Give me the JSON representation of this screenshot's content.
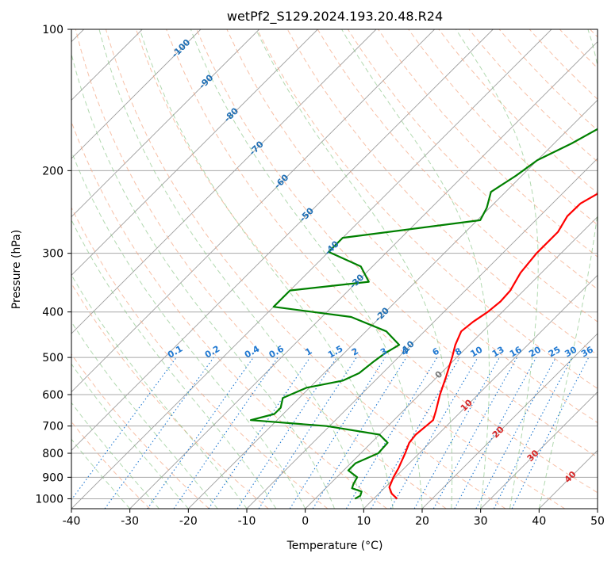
{
  "chart_data": {
    "type": "line",
    "title": "wetPf2_S129.2024.193.20.48.R24",
    "xlabel": "Temperature (°C)",
    "ylabel": "Pressure (hPa)",
    "xlim": [
      -40,
      50
    ],
    "ylim": [
      1050,
      100
    ],
    "y_scale": "log",
    "grid": true,
    "x_ticks": [
      "-40",
      "-30",
      "-20",
      "-10",
      "0",
      "10",
      "20",
      "30",
      "40",
      "50"
    ],
    "y_ticks": [
      "100",
      "200",
      "300",
      "400",
      "500",
      "600",
      "700",
      "800",
      "900",
      "1000"
    ],
    "series": [
      {
        "role": "temperature",
        "color": "#ff0000",
        "points": [
          {
            "p": 1000,
            "t": 14.0
          },
          {
            "p": 975,
            "t": 12.2
          },
          {
            "p": 945,
            "t": 10.7
          },
          {
            "p": 900,
            "t": 9.7
          },
          {
            "p": 860,
            "t": 9.0
          },
          {
            "p": 800,
            "t": 7.6
          },
          {
            "p": 760,
            "t": 6.5
          },
          {
            "p": 730,
            "t": 6.2
          },
          {
            "p": 700,
            "t": 6.5
          },
          {
            "p": 680,
            "t": 6.7
          },
          {
            "p": 650,
            "t": 5.6
          },
          {
            "p": 600,
            "t": 3.5
          },
          {
            "p": 550,
            "t": 1.5
          },
          {
            "p": 500,
            "t": -0.8
          },
          {
            "p": 470,
            "t": -2.4
          },
          {
            "p": 440,
            "t": -3.7
          },
          {
            "p": 420,
            "t": -3.3
          },
          {
            "p": 400,
            "t": -2.5
          },
          {
            "p": 380,
            "t": -2.1
          },
          {
            "p": 360,
            "t": -2.3
          },
          {
            "p": 330,
            "t": -3.6
          },
          {
            "p": 300,
            "t": -4.2
          },
          {
            "p": 270,
            "t": -4.2
          },
          {
            "p": 250,
            "t": -5.3
          },
          {
            "p": 235,
            "t": -5.2
          },
          {
            "p": 220,
            "t": -3.5
          },
          {
            "p": 200,
            "t": -0.5
          },
          {
            "p": 180,
            "t": 2.7
          },
          {
            "p": 160,
            "t": 5.8
          },
          {
            "p": 145,
            "t": 8.8
          },
          {
            "p": 135,
            "t": 12.5
          },
          {
            "p": 128,
            "t": 15.2
          },
          {
            "p": 120,
            "t": 17.0
          },
          {
            "p": 110,
            "t": 18.4
          },
          {
            "p": 100,
            "t": 20.0
          }
        ]
      },
      {
        "role": "dewpoint",
        "color": "#008000",
        "points": [
          {
            "p": 1000,
            "t": 6.8
          },
          {
            "p": 985,
            "t": 7.2
          },
          {
            "p": 965,
            "t": 6.7
          },
          {
            "p": 950,
            "t": 4.5
          },
          {
            "p": 930,
            "t": 4.0
          },
          {
            "p": 900,
            "t": 3.5
          },
          {
            "p": 870,
            "t": 0.8
          },
          {
            "p": 840,
            "t": 0.8
          },
          {
            "p": 800,
            "t": 3.0
          },
          {
            "p": 760,
            "t": 2.8
          },
          {
            "p": 730,
            "t": 0.0
          },
          {
            "p": 700,
            "t": -10.5
          },
          {
            "p": 680,
            "t": -24.5
          },
          {
            "p": 660,
            "t": -21.5
          },
          {
            "p": 640,
            "t": -21.5
          },
          {
            "p": 610,
            "t": -22.8
          },
          {
            "p": 580,
            "t": -20.5
          },
          {
            "p": 560,
            "t": -15.5
          },
          {
            "p": 540,
            "t": -14.0
          },
          {
            "p": 510,
            "t": -13.5
          },
          {
            "p": 490,
            "t": -13.0
          },
          {
            "p": 470,
            "t": -12.0
          },
          {
            "p": 440,
            "t": -16.5
          },
          {
            "p": 410,
            "t": -25.0
          },
          {
            "p": 390,
            "t": -40.0
          },
          {
            "p": 360,
            "t": -40.0
          },
          {
            "p": 345,
            "t": -28.0
          },
          {
            "p": 320,
            "t": -32.0
          },
          {
            "p": 298,
            "t": -40.0
          },
          {
            "p": 278,
            "t": -40.0
          },
          {
            "p": 255,
            "t": -19.5
          },
          {
            "p": 240,
            "t": -20.5
          },
          {
            "p": 222,
            "t": -22.5
          },
          {
            "p": 205,
            "t": -21.0
          },
          {
            "p": 190,
            "t": -20.0
          },
          {
            "p": 175,
            "t": -17.0
          },
          {
            "p": 160,
            "t": -14.5
          },
          {
            "p": 150,
            "t": -12.5
          },
          {
            "p": 143,
            "t": -12.8
          },
          {
            "p": 133,
            "t": -21.0
          },
          {
            "p": 127,
            "t": -21.5
          },
          {
            "p": 122,
            "t": -17.0
          },
          {
            "p": 115,
            "t": -8.5
          },
          {
            "p": 105,
            "t": -6.0
          },
          {
            "p": 100,
            "t": -2.0
          }
        ]
      }
    ],
    "dry_adiabat_labels": [
      "-100",
      "-90",
      "-80",
      "-70",
      "-60",
      "-50",
      "-40",
      "-30",
      "-20",
      "-10",
      "0",
      "10",
      "20",
      "30",
      "40"
    ],
    "mixing_ratio_labels": [
      "0.1",
      "0.2",
      "0.4",
      "0.6",
      "1",
      "1.5",
      "2",
      "3",
      "4",
      "6",
      "8",
      "10",
      "13",
      "16",
      "20",
      "25",
      "30",
      "36"
    ],
    "colors": {
      "isotherm": "#9e9e9e",
      "isobar": "#a8a8a8",
      "dry_adiabat": "#f4a582",
      "moist_adiabat": "#7fbf7b",
      "mixing_ratio": "#1f78d1",
      "dry_label_neg": "#1f6fb4",
      "dry_label_zero": "#777777",
      "dry_label_pos": "#d62728"
    }
  }
}
